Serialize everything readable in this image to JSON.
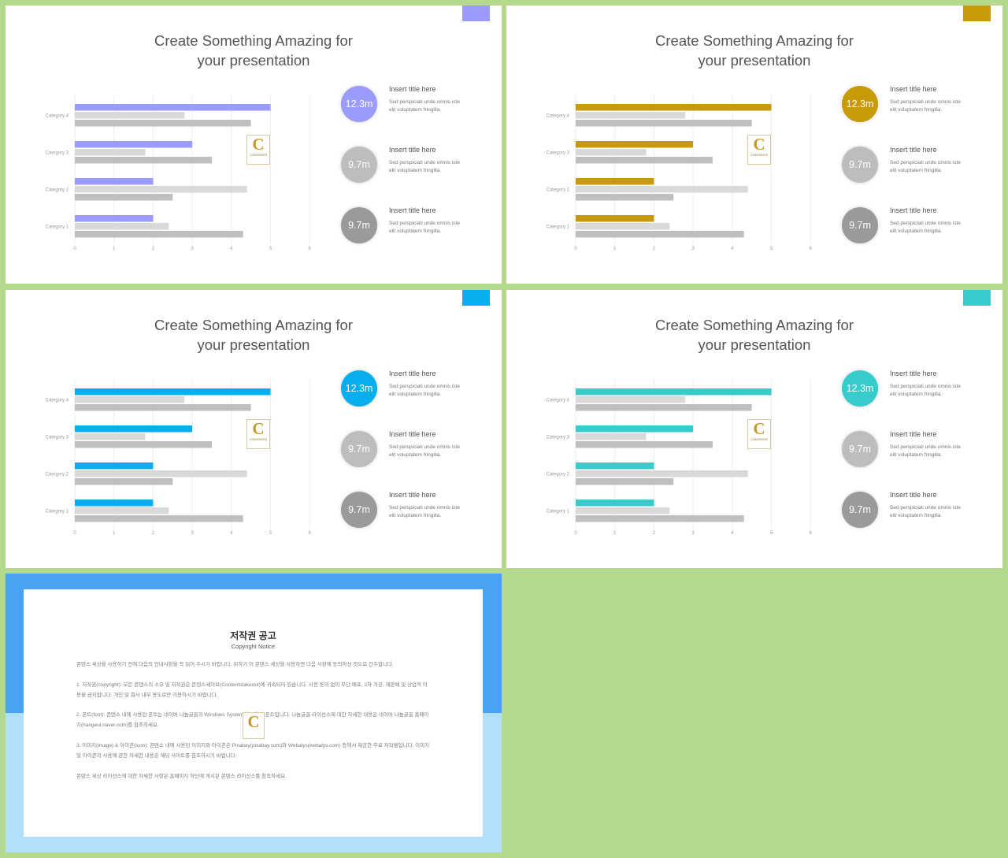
{
  "slides": [
    {
      "title": "Create Something Amazing for\nyour presentation",
      "accent": "#9b9bfb",
      "logo": {
        "letter": "C",
        "word": "CONTENTS"
      },
      "chart_data": {
        "type": "bar",
        "orientation": "horizontal",
        "categories": [
          "Category 4",
          "Category 3",
          "Category 2",
          "Category 1"
        ],
        "series": [
          {
            "values": [
              5,
              3,
              2,
              2
            ],
            "color": "#9b9bfb"
          },
          {
            "values": [
              2.8,
              1.8,
              4.4,
              2.4
            ],
            "color": "#d9d9d9"
          },
          {
            "values": [
              4.5,
              3.5,
              2.5,
              4.3
            ],
            "color": "#bfbfbf"
          }
        ],
        "x_ticks": [
          "0",
          "1",
          "2",
          "3",
          "4",
          "5",
          "6"
        ],
        "xlim": [
          0,
          6
        ],
        "grid": true
      },
      "stats": [
        {
          "value": "12.3m",
          "color": "#9b9bfb",
          "title": "Insert title here",
          "desc": "Sed perspiciati unde omnis iste\nelit voluptatem fringilla."
        },
        {
          "value": "9.7m",
          "color": "#bdbdbd",
          "title": "Insert title here",
          "desc": "Sed perspiciati unde omnis iste\nelit voluptatem fringilla."
        },
        {
          "value": "9.7m",
          "color": "#9a9a9a",
          "title": "Insert title here",
          "desc": "Sed perspiciati unde omnis iste\nelit voluptatem fringilla."
        }
      ]
    },
    {
      "title": "Create Something Amazing for\nyour presentation",
      "accent": "#c99a08",
      "logo": {
        "letter": "C",
        "word": "CONTENTS"
      },
      "chart_data": {
        "type": "bar",
        "orientation": "horizontal",
        "categories": [
          "Category 4",
          "Category 3",
          "Category 2",
          "Category 1"
        ],
        "series": [
          {
            "values": [
              5,
              3,
              2,
              2
            ],
            "color": "#c99a08"
          },
          {
            "values": [
              2.8,
              1.8,
              4.4,
              2.4
            ],
            "color": "#d9d9d9"
          },
          {
            "values": [
              4.5,
              3.5,
              2.5,
              4.3
            ],
            "color": "#bfbfbf"
          }
        ],
        "x_ticks": [
          "0",
          "1",
          "2",
          "3",
          "4",
          "5",
          "6"
        ],
        "xlim": [
          0,
          6
        ],
        "grid": true
      },
      "stats": [
        {
          "value": "12.3m",
          "color": "#c99a08",
          "title": "Insert title here",
          "desc": "Sed perspiciati unde omnis iste\nelit voluptatem fringilla."
        },
        {
          "value": "9.7m",
          "color": "#bdbdbd",
          "title": "Insert title here",
          "desc": "Sed perspiciati unde omnis iste\nelit voluptatem fringilla."
        },
        {
          "value": "9.7m",
          "color": "#9a9a9a",
          "title": "Insert title here",
          "desc": "Sed perspiciati unde omnis iste\nelit voluptatem fringilla."
        }
      ]
    },
    {
      "title": "Create Something Amazing for\nyour presentation",
      "accent": "#06aeee",
      "logo": {
        "letter": "C",
        "word": "CONTENTS"
      },
      "chart_data": {
        "type": "bar",
        "orientation": "horizontal",
        "categories": [
          "Category 4",
          "Category 3",
          "Category 2",
          "Category 1"
        ],
        "series": [
          {
            "values": [
              5,
              3,
              2,
              2
            ],
            "color": "#06aeee"
          },
          {
            "values": [
              2.8,
              1.8,
              4.4,
              2.4
            ],
            "color": "#d9d9d9"
          },
          {
            "values": [
              4.5,
              3.5,
              2.5,
              4.3
            ],
            "color": "#bfbfbf"
          }
        ],
        "x_ticks": [
          "0",
          "1",
          "2",
          "3",
          "4",
          "5",
          "6"
        ],
        "xlim": [
          0,
          6
        ],
        "grid": true
      },
      "stats": [
        {
          "value": "12.3m",
          "color": "#06aeee",
          "title": "Insert title here",
          "desc": "Sed perspiciati unde omnis iste\nelit voluptatem fringilla."
        },
        {
          "value": "9.7m",
          "color": "#bdbdbd",
          "title": "Insert title here",
          "desc": "Sed perspiciati unde omnis iste\nelit voluptatem fringilla."
        },
        {
          "value": "9.7m",
          "color": "#9a9a9a",
          "title": "Insert title here",
          "desc": "Sed perspiciati unde omnis iste\nelit voluptatem fringilla."
        }
      ]
    },
    {
      "title": "Create Something Amazing for\nyour presentation",
      "accent": "#36cccc",
      "logo": {
        "letter": "C",
        "word": "CONTENTS"
      },
      "chart_data": {
        "type": "bar",
        "orientation": "horizontal",
        "categories": [
          "Category 4",
          "Category 3",
          "Category 2",
          "Category 1"
        ],
        "series": [
          {
            "values": [
              5,
              3,
              2,
              2
            ],
            "color": "#36cccc"
          },
          {
            "values": [
              2.8,
              1.8,
              4.4,
              2.4
            ],
            "color": "#d9d9d9"
          },
          {
            "values": [
              4.5,
              3.5,
              2.5,
              4.3
            ],
            "color": "#bfbfbf"
          }
        ],
        "x_ticks": [
          "0",
          "1",
          "2",
          "3",
          "4",
          "5",
          "6"
        ],
        "xlim": [
          0,
          6
        ],
        "grid": true
      },
      "stats": [
        {
          "value": "12.3m",
          "color": "#36cccc",
          "title": "Insert title here",
          "desc": "Sed perspiciati unde omnis iste\nelit voluptatem fringilla."
        },
        {
          "value": "9.7m",
          "color": "#bdbdbd",
          "title": "Insert title here",
          "desc": "Sed perspiciati unde omnis iste\nelit voluptatem fringilla."
        },
        {
          "value": "9.7m",
          "color": "#9a9a9a",
          "title": "Insert title here",
          "desc": "Sed perspiciati unde omnis iste\nelit voluptatem fringilla."
        }
      ]
    }
  ],
  "copyright": {
    "title": "저작권 공고",
    "subtitle": "Copyright Notice",
    "logo": {
      "letter": "C"
    },
    "paragraphs": [
      "콘텐스 세상을 사용하기 전에 다음의 안내사항을 꼭 읽어 주시기 바랍니다. 위하기 이 콘텐스 세상을 사용하면 다음 사항에 동의하신 것으로 간주합니다.",
      "1. 저작권(copyright): 모든 콘텐스의 소유 및 저작권은 콘텐스세이브(Contentstakeout)에 귀속되어 있습니다. 사전 동의 없이 무단 배포, 2차 가공, 재판매 및 상업적 이용을 금지합니다. 개인 및 회사 내부 용도로만 이용하시기 바랍니다.",
      "2. 폰트(font): 콘텐스 내에 사용된 폰트는 네이버 나눔글꼴과 Windows System에 포함된 폰트입니다. 나눔글꼴 라이선스에 대한 자세한 내용은 네이버 나눔글꼴 홈페이지(hangeul.naver.com)를 참조하세요.",
      "3. 이미지(image) & 아이콘(icon): 콘텐스 내에 사용된 이미지와 아이콘은 Pixabay(pixabay.com)와 Webalys(webalys.com) 등에서 제공한 무료 저작물입니다. 이미지 및 아이콘의 사용에 관한 자세한 내용은 해당 사이트를 참조하시기 바랍니다.",
      "콘텐스 세상 라이선스에 대한 자세한 사항은 홈페이지 하단에 게시된 콘텐스 라이선스를 참조하세요."
    ]
  }
}
